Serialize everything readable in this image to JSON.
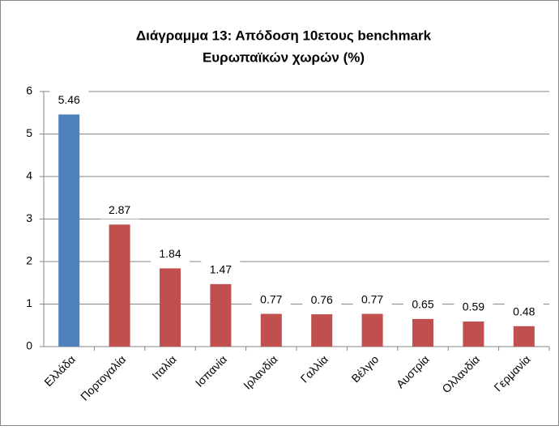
{
  "chart_data": {
    "type": "bar",
    "title": [
      "Διάγραμμα 13: Απόδοση 10ετους benchmark",
      "Ευρωπαϊκών χωρών (%)"
    ],
    "categories": [
      "Ελλάδα",
      "Πορτογαλία",
      "Ιταλία",
      "Ισπανία",
      "Ιρλανδία",
      "Γαλλία",
      "Βέλγιο",
      "Αυστρία",
      "Ολλανδία",
      "Γερμανία"
    ],
    "values": [
      5.46,
      2.87,
      1.84,
      1.47,
      0.77,
      0.76,
      0.77,
      0.65,
      0.59,
      0.48
    ],
    "colors": [
      "#4f81bd",
      "#c0504d",
      "#c0504d",
      "#c0504d",
      "#c0504d",
      "#c0504d",
      "#c0504d",
      "#c0504d",
      "#c0504d",
      "#c0504d"
    ],
    "ylim": [
      0,
      6
    ],
    "yticks": [
      0,
      1,
      2,
      3,
      4,
      5,
      6
    ],
    "grid": true
  }
}
